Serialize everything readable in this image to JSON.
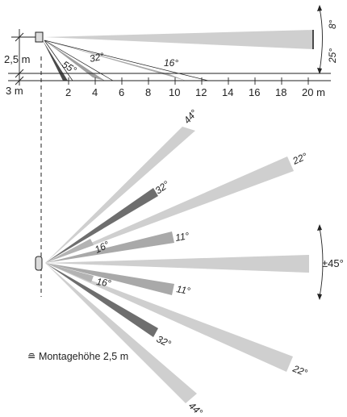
{
  "side_view": {
    "height_label": "2,5 m",
    "offset_label": "3 m",
    "axis_ticks": [
      "2",
      "4",
      "6",
      "8",
      "10",
      "12",
      "14",
      "16",
      "18",
      "20 m"
    ],
    "beam_angle_labels": [
      "55°",
      "32°",
      "16°"
    ],
    "tilt_top": "8°",
    "tilt_bottom": "25°"
  },
  "top_view": {
    "upper_labels": [
      "44°",
      "22°",
      "32°",
      "11°",
      "16°"
    ],
    "center_label": "±45°",
    "lower_labels": [
      "16°",
      "11°",
      "32°",
      "22°",
      "44°"
    ]
  },
  "note": "≘ Montagehöhe 2,5 m",
  "colors": {
    "beam_light": "#cfcfcf",
    "beam_mid": "#a9a9a9",
    "beam_dark": "#6e6e6e",
    "line": "#222222"
  }
}
